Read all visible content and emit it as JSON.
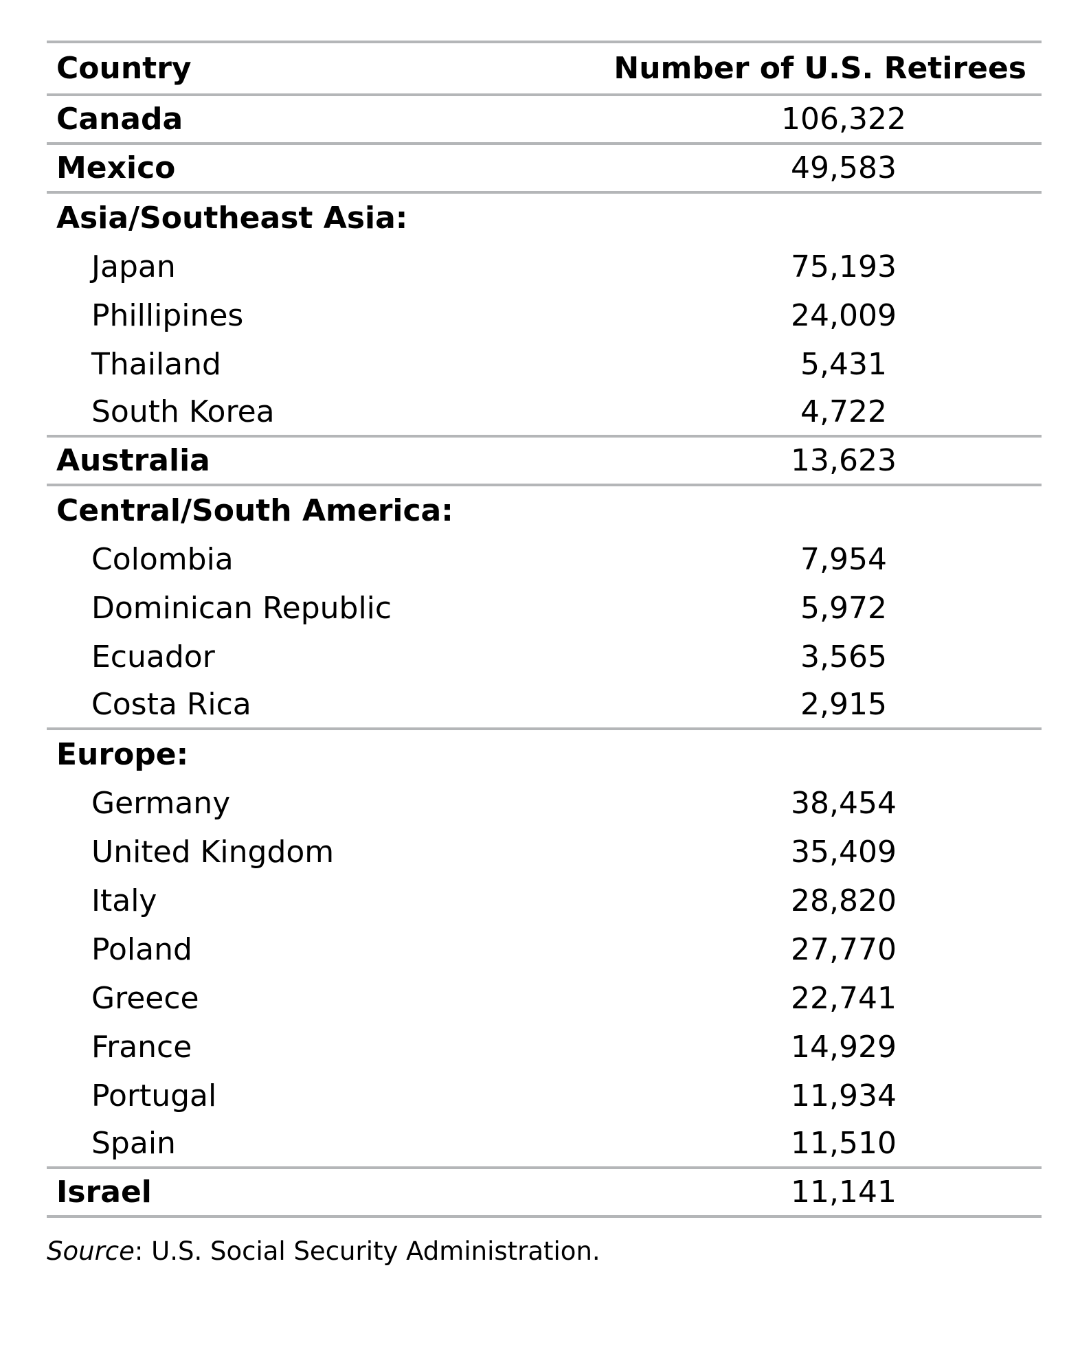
{
  "table": {
    "headers": [
      "Country",
      "Number of U.S. Retirees"
    ],
    "rows": [
      {
        "name": "Canada",
        "value": "106,322",
        "type": "region"
      },
      {
        "name": "Mexico",
        "value": "49,583",
        "type": "region"
      },
      {
        "name": "Asia/Southeast Asia:",
        "value": "",
        "type": "group"
      },
      {
        "name": "Japan",
        "value": "75,193",
        "type": "item"
      },
      {
        "name": "Phillipines",
        "value": "24,009",
        "type": "item"
      },
      {
        "name": "Thailand",
        "value": "5,431",
        "type": "item"
      },
      {
        "name": "South Korea",
        "value": "4,722",
        "type": "item"
      },
      {
        "name": "Australia",
        "value": "13,623",
        "type": "region"
      },
      {
        "name": "Central/South America:",
        "value": "",
        "type": "group"
      },
      {
        "name": "Colombia",
        "value": "7,954",
        "type": "item"
      },
      {
        "name": "Dominican Republic",
        "value": "5,972",
        "type": "item"
      },
      {
        "name": "Ecuador",
        "value": "3,565",
        "type": "item"
      },
      {
        "name": "Costa Rica",
        "value": "2,915",
        "type": "item"
      },
      {
        "name": "Europe:",
        "value": "",
        "type": "group"
      },
      {
        "name": "Germany",
        "value": "38,454",
        "type": "item"
      },
      {
        "name": "United Kingdom",
        "value": "35,409",
        "type": "item"
      },
      {
        "name": "Italy",
        "value": "28,820",
        "type": "item"
      },
      {
        "name": "Poland",
        "value": "27,770",
        "type": "item"
      },
      {
        "name": "Greece",
        "value": "22,741",
        "type": "item"
      },
      {
        "name": "France",
        "value": "14,929",
        "type": "item"
      },
      {
        "name": "Portugal",
        "value": "11,934",
        "type": "item"
      },
      {
        "name": "Spain",
        "value": "11,510",
        "type": "item"
      },
      {
        "name": "Israel",
        "value": "11,141",
        "type": "region"
      }
    ]
  },
  "source": {
    "label": "Source",
    "text": ": U.S. Social Security Administration."
  },
  "colors": {
    "rule": "#b4b6b8",
    "text": "#000000"
  }
}
